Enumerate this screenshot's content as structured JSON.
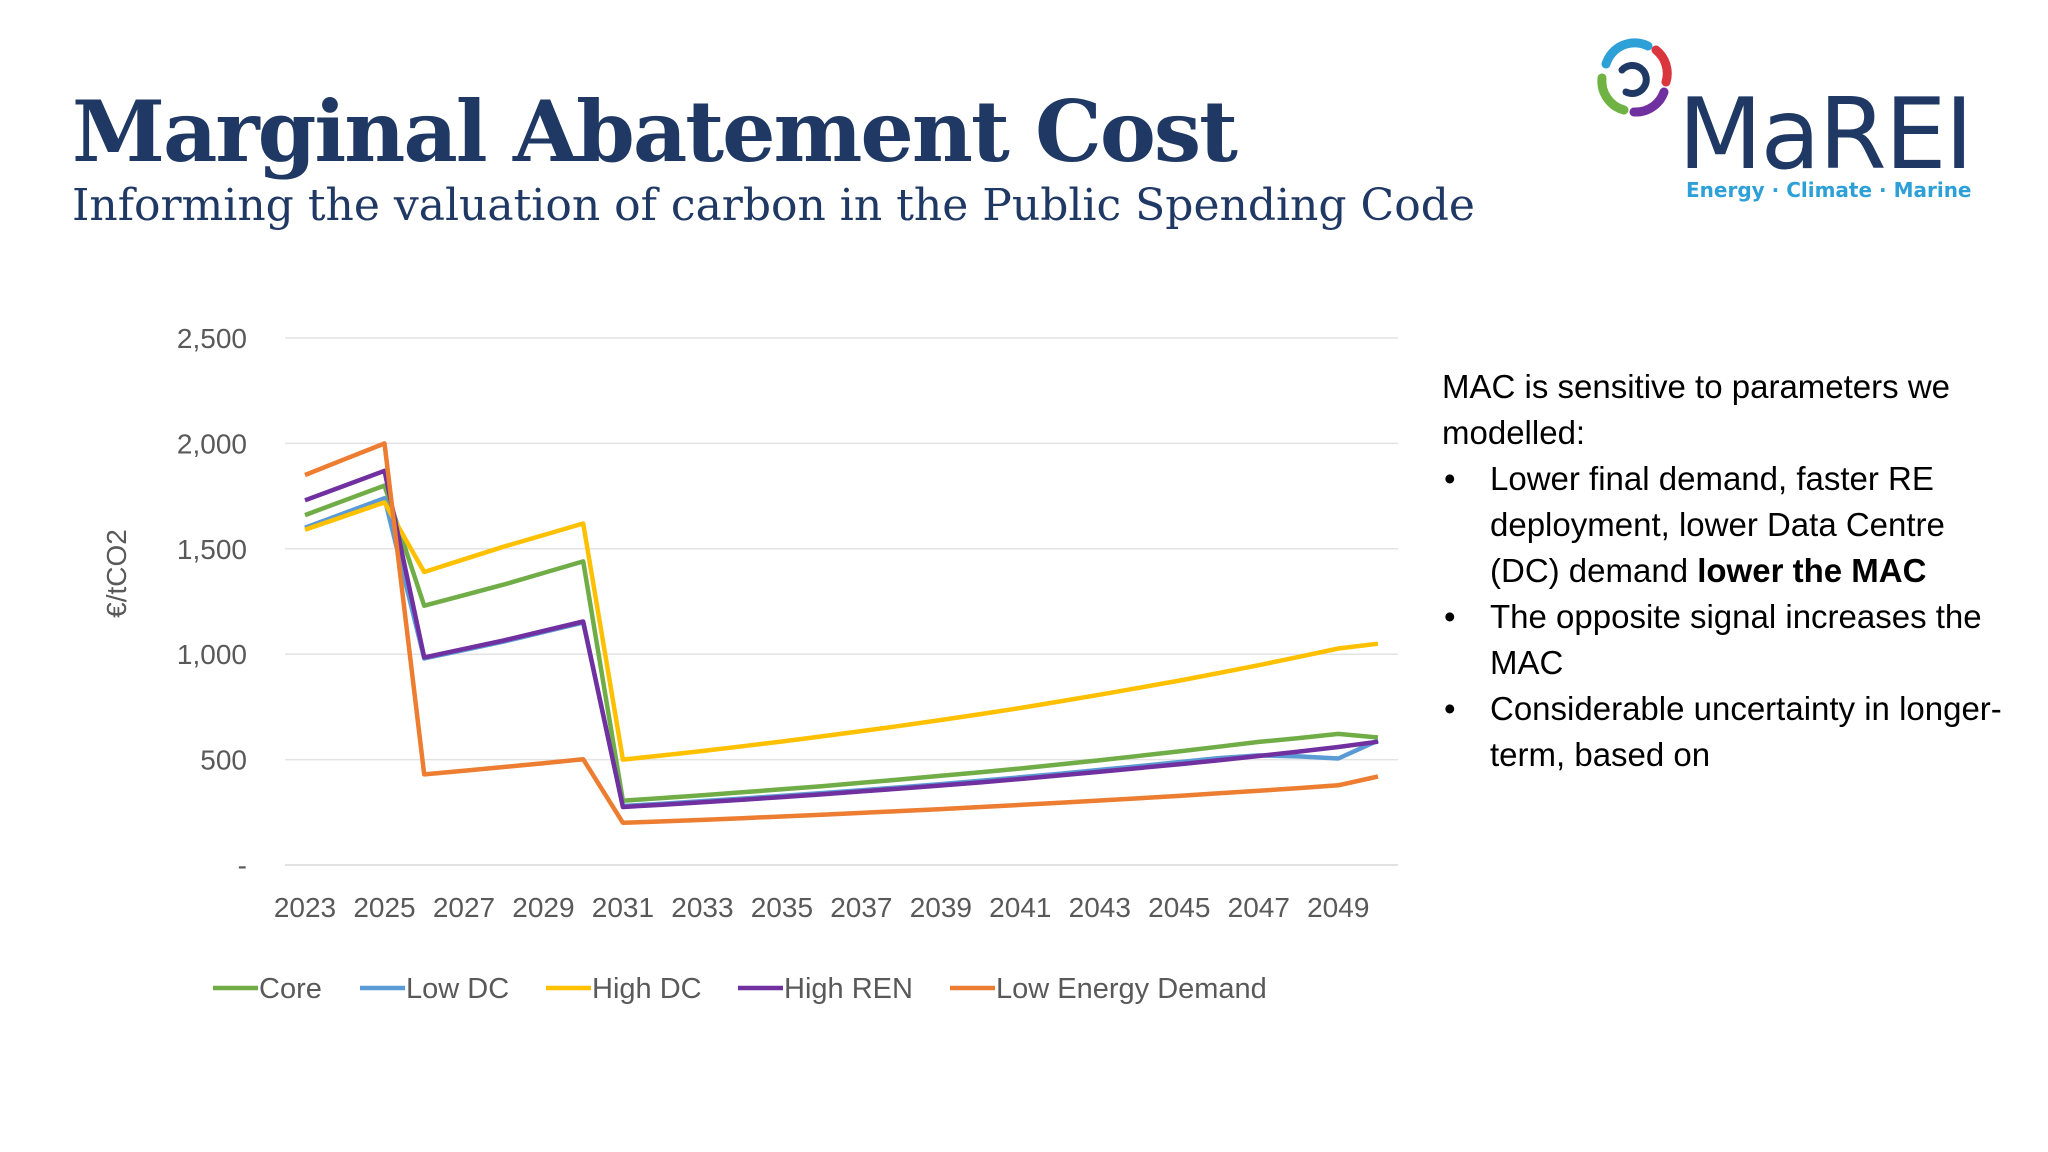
{
  "slide": {
    "title": "Marginal Abatement Cost",
    "subtitle": "Informing the valuation of carbon in the Public Spending Code"
  },
  "logo": {
    "name": "MaREI",
    "tagline": "Energy · Climate · Marine",
    "colors": {
      "navy": "#1f3864",
      "blue": "#2ea0d8",
      "green": "#70b244",
      "red": "#d9363e",
      "purple": "#7030a0"
    }
  },
  "bullets": {
    "intro": "MAC is sensitive to parameters we modelled:",
    "items": [
      {
        "text": "Lower final demand, faster RE deployment, lower Data Centre (DC) demand ",
        "bold": "lower the MAC"
      },
      {
        "text": "The opposite signal increases the MAC",
        "bold": ""
      },
      {
        "text": "Considerable uncertainty in longer-term, based on",
        "bold": ""
      }
    ],
    "bullet_glyph": "•"
  },
  "chart_data": {
    "type": "line",
    "ylabel": "€/tCO2",
    "xlabel": "",
    "ylim": [
      0,
      2500
    ],
    "y_ticks": [
      0,
      500,
      1000,
      1500,
      2000,
      2500
    ],
    "y_tick_labels": [
      "-",
      "500",
      "1,000",
      "1,500",
      "2,000",
      "2,500"
    ],
    "x_tick_labels": [
      "2023",
      "2025",
      "2027",
      "2029",
      "2031",
      "2033",
      "2035",
      "2037",
      "2039",
      "2041",
      "2043",
      "2045",
      "2047",
      "2049"
    ],
    "grid": true,
    "legend_position": "bottom",
    "x": [
      2023,
      2024,
      2025,
      2026,
      2027,
      2028,
      2029,
      2030,
      2031,
      2032,
      2033,
      2034,
      2035,
      2036,
      2037,
      2038,
      2039,
      2040,
      2041,
      2042,
      2043,
      2044,
      2045,
      2046,
      2047,
      2048,
      2049,
      2050
    ],
    "series": [
      {
        "name": "Core",
        "color": "#70ad47",
        "values": [
          1660,
          1730,
          1800,
          1230,
          1280,
          1330,
          1385,
          1440,
          305,
          318,
          331,
          345,
          359,
          374,
          390,
          406,
          423,
          440,
          458,
          477,
          497,
          518,
          539,
          561,
          584,
          602,
          622,
          605
        ]
      },
      {
        "name": "Low DC",
        "color": "#5b9bd5",
        "values": [
          1600,
          1670,
          1740,
          980,
          1020,
          1060,
          1105,
          1150,
          280,
          291,
          303,
          315,
          328,
          341,
          355,
          369,
          384,
          400,
          416,
          433,
          451,
          469,
          488,
          507,
          520,
          515,
          505,
          590
        ]
      },
      {
        "name": "High DC",
        "color": "#ffc000",
        "values": [
          1590,
          1655,
          1720,
          1390,
          1450,
          1510,
          1565,
          1620,
          500,
          520,
          541,
          563,
          586,
          610,
          635,
          661,
          688,
          716,
          745,
          776,
          808,
          841,
          875,
          911,
          948,
          987,
          1027,
          1050
        ]
      },
      {
        "name": "High REN",
        "color": "#7030a0",
        "values": [
          1730,
          1800,
          1870,
          985,
          1025,
          1065,
          1110,
          1155,
          275,
          286,
          298,
          310,
          322,
          335,
          349,
          363,
          377,
          392,
          408,
          425,
          442,
          460,
          478,
          497,
          517,
          538,
          560,
          585
        ]
      },
      {
        "name": "Low Energy Demand",
        "color": "#ed7d31",
        "values": [
          1850,
          1925,
          2000,
          430,
          447,
          465,
          483,
          502,
          200,
          207,
          214,
          222,
          230,
          238,
          247,
          256,
          265,
          275,
          285,
          295,
          306,
          317,
          328,
          340,
          352,
          365,
          378,
          420
        ]
      }
    ]
  }
}
